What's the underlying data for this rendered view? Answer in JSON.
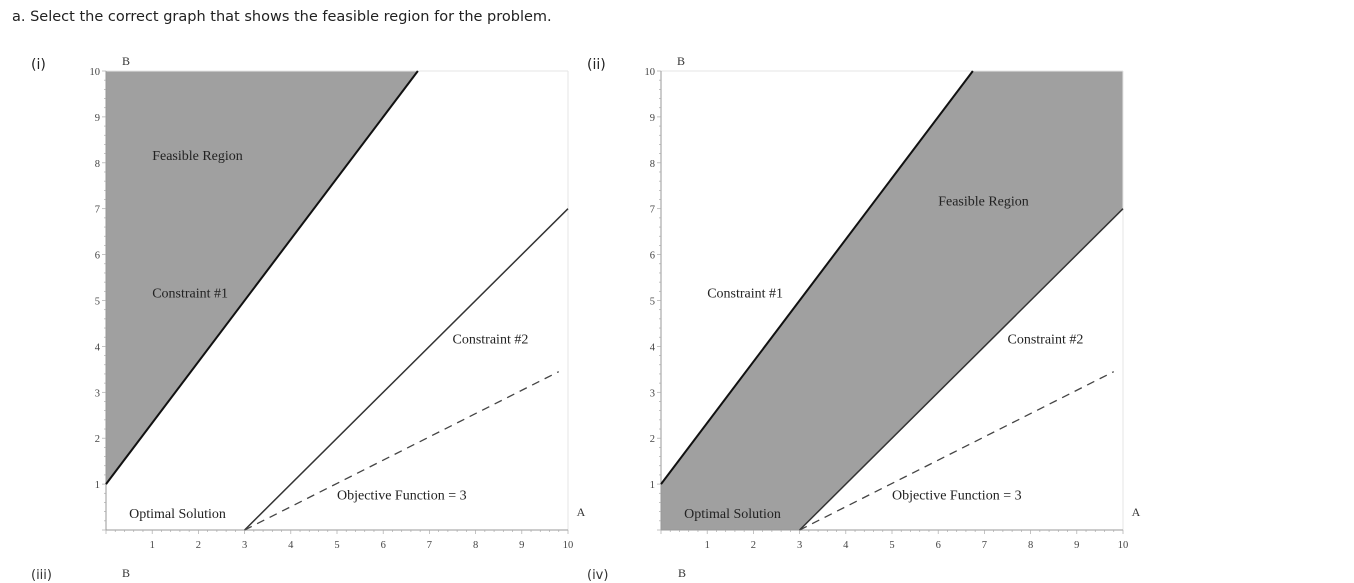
{
  "question": {
    "text": "a. Select the correct graph that shows the feasible region for the problem."
  },
  "options": [
    {
      "label": "(i)",
      "feasible": "above_c1",
      "axis_y_label": "B",
      "axis_x_label": "A",
      "x_ticks": [
        "1",
        "2",
        "3",
        "4",
        "5",
        "6",
        "7",
        "8",
        "9",
        "10"
      ],
      "y_ticks": [
        "1",
        "2",
        "3",
        "4",
        "5",
        "6",
        "7",
        "8",
        "9",
        "10"
      ],
      "labels": {
        "feasible_region": "Feasible Region",
        "constraint1": "Constraint #1",
        "constraint2": "Constraint #2",
        "objective": "Objective Function = 3",
        "optimal": "Optimal Solution"
      }
    },
    {
      "label": "(ii)",
      "feasible": "between",
      "axis_y_label": "B",
      "axis_x_label": "A",
      "x_ticks": [
        "1",
        "2",
        "3",
        "4",
        "5",
        "6",
        "7",
        "8",
        "9",
        "10"
      ],
      "y_ticks": [
        "1",
        "2",
        "3",
        "4",
        "5",
        "6",
        "7",
        "8",
        "9",
        "10"
      ],
      "labels": {
        "feasible_region": "Feasible Region",
        "constraint1": "Constraint #1",
        "constraint2": "Constraint #2",
        "objective": "Objective Function = 3",
        "optimal": "Optimal Solution"
      }
    }
  ],
  "cut_off": {
    "option3_label": "(iii)",
    "option3_axis": "B",
    "option4_label": "(iv)",
    "option4_axis": "B"
  },
  "colors": {
    "feasible_fill": "#a0a0a0",
    "text": "#222222"
  }
}
